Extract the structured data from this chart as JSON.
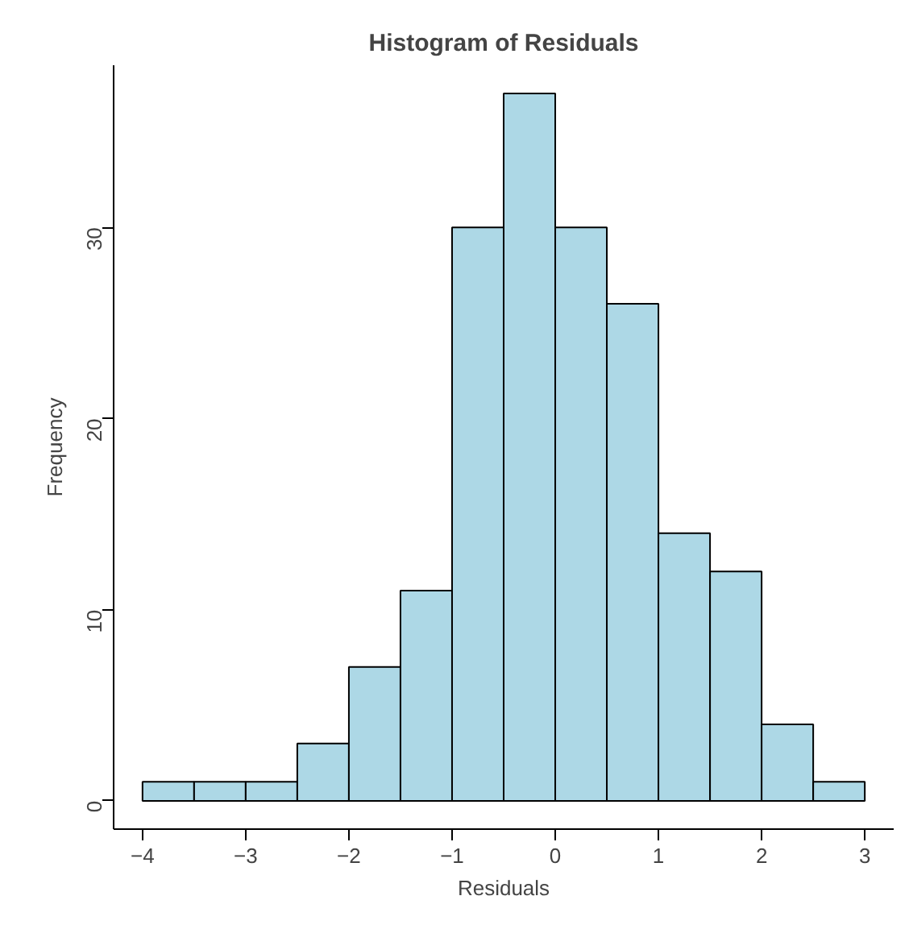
{
  "chart_data": {
    "type": "histogram",
    "title": "Histogram of Residuals",
    "xlabel": "Residuals",
    "ylabel": "Frequency",
    "bins": [
      -4,
      -3.5,
      -3,
      -2.5,
      -2,
      -1.5,
      -1,
      -0.5,
      0,
      0.5,
      1,
      1.5,
      2,
      2.5,
      3
    ],
    "values": [
      1,
      1,
      1,
      3,
      7,
      11,
      30,
      37,
      30,
      26,
      14,
      12,
      4,
      1
    ],
    "color": "#add8e6",
    "xlim": [
      -4.28,
      3.28
    ],
    "ylim": [
      -1.48,
      38.48
    ],
    "xticks": [
      -4,
      -3,
      -2,
      -1,
      0,
      1,
      2,
      3
    ],
    "yticks": [
      0,
      10,
      20,
      30
    ],
    "grid": false
  }
}
